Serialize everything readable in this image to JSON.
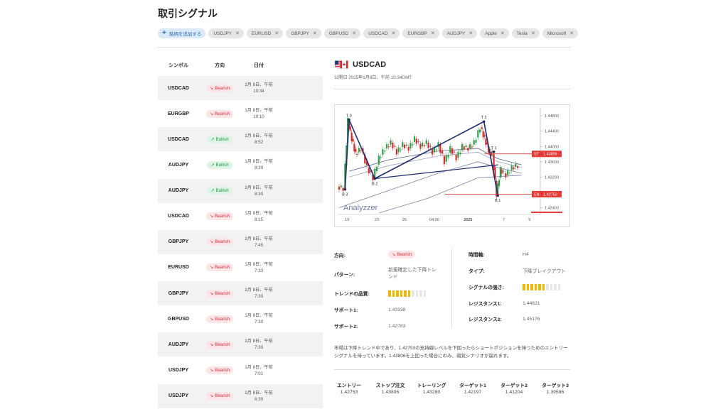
{
  "page": {
    "title": "取引シグナル"
  },
  "chips": {
    "add_label": "銘柄を追加する",
    "items": [
      "USDJPY",
      "EURUSD",
      "GBPJPY",
      "GBPUSD",
      "USDCAD",
      "EURGBP",
      "AUDJPY",
      "Apple",
      "Tesla",
      "Microsoft"
    ]
  },
  "table": {
    "headers": {
      "symbol": "シンボル",
      "direction": "方向",
      "date": "日付"
    },
    "rows": [
      {
        "symbol": "USDCAD",
        "direction": "Bearish",
        "date1": "1月 8日、午前",
        "date2": "10:34"
      },
      {
        "symbol": "EURGBP",
        "direction": "Bearish",
        "date1": "1月 8日、午前",
        "date2": "10:10"
      },
      {
        "symbol": "USDCAD",
        "direction": "Bullish",
        "date1": "1月 8日、午前",
        "date2": "8:52"
      },
      {
        "symbol": "AUDJPY",
        "direction": "Bullish",
        "date1": "1月 8日、午前",
        "date2": "8:30"
      },
      {
        "symbol": "AUDJPY",
        "direction": "Bullish",
        "date1": "1月 8日、午前",
        "date2": "8:30"
      },
      {
        "symbol": "USDCAD",
        "direction": "Bearish",
        "date1": "1月 8日、午前",
        "date2": "8:15"
      },
      {
        "symbol": "GBPJPY",
        "direction": "Bearish",
        "date1": "1月 8日、午前",
        "date2": "7:45"
      },
      {
        "symbol": "EURUSD",
        "direction": "Bearish",
        "date1": "1月 8日、午前",
        "date2": "7:33"
      },
      {
        "symbol": "GBPJPY",
        "direction": "Bearish",
        "date1": "1月 8日、午前",
        "date2": "7:30"
      },
      {
        "symbol": "GBPUSD",
        "direction": "Bearish",
        "date1": "1月 8日、午前",
        "date2": "7:30"
      },
      {
        "symbol": "AUDJPY",
        "direction": "Bearish",
        "date1": "1月 8日、午前",
        "date2": "7:30"
      },
      {
        "symbol": "USDJPY",
        "direction": "Bearish",
        "date1": "1月 8日、午前",
        "date2": "7:01"
      },
      {
        "symbol": "USDJPY",
        "direction": "Bearish",
        "date1": "1月 8日、午前",
        "date2": "6:30"
      }
    ]
  },
  "detail": {
    "symbol": "USDCAD",
    "published": "公開日 2025年1月8日、午前 10:34GMT",
    "direction_label": "方向:",
    "direction": "Bearish",
    "pattern_label": "パターン:",
    "pattern": "新規確定した下降トレンド",
    "trend_quality_label": "トレンドの品質:",
    "trend_quality": 0.6,
    "support1_label": "サポート1:",
    "support1": "1.43338",
    "support2_label": "サポート2:",
    "support2": "1.42783",
    "timeframe_label": "時間軸:",
    "timeframe": "H4",
    "type_label": "タイプ:",
    "type": "下降ブレイクアウト",
    "signal_strength_label": "シグナルの強さ:",
    "signal_strength": 0.6,
    "resistance1_label": "レジスタンス1:",
    "resistance1": "1.44621",
    "resistance2_label": "レジスタンス2:",
    "resistance2": "1.45176",
    "summary": "市場は下降トレンド中であり、1.42753の支持線レベルを下回ったらショートポジションを持つためのエントリーシグナルを待っています。1.43806を上回った場合にのみ、弱気シナリオが崩れます。",
    "targets": [
      {
        "label": "エントリー",
        "value": "1.42753"
      },
      {
        "label": "ストップ注文",
        "value": "1.43806"
      },
      {
        "label": "トレーリング",
        "value": "1.43280"
      },
      {
        "label": "ターゲット1",
        "value": "1.42197"
      },
      {
        "label": "ターゲット2",
        "value": "1.41204"
      },
      {
        "label": "ターゲット3",
        "value": "1.39586"
      }
    ]
  },
  "chart_data": {
    "type": "line",
    "watermark": "Analyzzer",
    "x_ticks": [
      "19",
      "23",
      "26",
      "04:00",
      "2025",
      "7",
      "9"
    ],
    "y_ticks": [
      "1.44800",
      "1.44400",
      "1.44000",
      "1.43600",
      "1.43200",
      "1.42800",
      "1.42400"
    ],
    "ylim": [
      1.4226,
      1.4497
    ],
    "st_label": "ST",
    "st_value": 1.43806,
    "en_label": "EN",
    "en_value": 1.42753,
    "pivot_labels": [
      "T 3",
      "B 3",
      "B 2",
      "T 2",
      "T 1",
      "B 1"
    ],
    "pivots": [
      {
        "label": "T 3",
        "x": 0.05,
        "y": 1.447
      },
      {
        "label": "B 3",
        "x": 0.03,
        "y": 1.4288
      },
      {
        "label": "B 2",
        "x": 0.18,
        "y": 1.4316
      },
      {
        "label": "T 2",
        "x": 0.73,
        "y": 1.4465
      },
      {
        "label": "T 1",
        "x": 0.78,
        "y": 1.4386
      },
      {
        "label": "B 1",
        "x": 0.8,
        "y": 1.4272
      }
    ],
    "price": [
      [
        0.0,
        1.4295
      ],
      [
        0.03,
        1.429
      ],
      [
        0.05,
        1.4468
      ],
      [
        0.07,
        1.442
      ],
      [
        0.09,
        1.438
      ],
      [
        0.12,
        1.4395
      ],
      [
        0.15,
        1.4345
      ],
      [
        0.18,
        1.4318
      ],
      [
        0.21,
        1.437
      ],
      [
        0.24,
        1.4395
      ],
      [
        0.27,
        1.441
      ],
      [
        0.3,
        1.4385
      ],
      [
        0.33,
        1.4405
      ],
      [
        0.36,
        1.4395
      ],
      [
        0.39,
        1.442
      ],
      [
        0.42,
        1.44
      ],
      [
        0.45,
        1.441
      ],
      [
        0.48,
        1.4385
      ],
      [
        0.51,
        1.4405
      ],
      [
        0.54,
        1.436
      ],
      [
        0.57,
        1.4395
      ],
      [
        0.6,
        1.437
      ],
      [
        0.63,
        1.44
      ],
      [
        0.66,
        1.4395
      ],
      [
        0.69,
        1.441
      ],
      [
        0.72,
        1.445
      ],
      [
        0.74,
        1.442
      ],
      [
        0.76,
        1.439
      ],
      [
        0.78,
        1.438
      ],
      [
        0.8,
        1.4275
      ],
      [
        0.82,
        1.434
      ],
      [
        0.85,
        1.4325
      ],
      [
        0.88,
        1.4345
      ],
      [
        0.91,
        1.435
      ]
    ]
  }
}
